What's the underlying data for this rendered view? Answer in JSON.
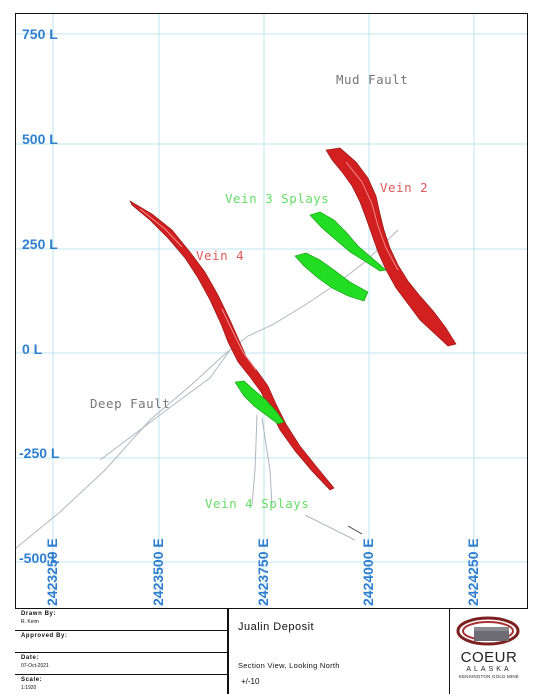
{
  "section": {
    "levels": [
      {
        "label": "750 L",
        "value": 750
      },
      {
        "label": "500 L",
        "value": 500
      },
      {
        "label": "250 L",
        "value": 250
      },
      {
        "label": "0 L",
        "value": 0
      },
      {
        "label": "-250 L",
        "value": -250
      },
      {
        "label": "-500 L",
        "value": -500
      }
    ],
    "eastings": [
      {
        "label": "2423250 E",
        "value": 2423250
      },
      {
        "label": "2423500 E",
        "value": 2423500
      },
      {
        "label": "2423750 E",
        "value": 2423750
      },
      {
        "label": "2424000 E",
        "value": 2424000
      },
      {
        "label": "2424250 E",
        "value": 2424250
      }
    ],
    "features": {
      "mud_fault": "Mud Fault",
      "vein_2": "Vein 2",
      "vein_3_splays": "Vein 3 Splays",
      "vein_4": "Vein 4",
      "deep_fault": "Deep Fault",
      "vein_4_splays": "Vein 4 Splays"
    },
    "colors": {
      "grid": "#bfe6ef",
      "axis_labels": "#2f7fd1",
      "vein_red": "#d21f1f",
      "vein_green": "#22dd22",
      "fault_line": "#aeb8c0",
      "label_gray": "#777777",
      "label_red": "#e05a5a",
      "label_green": "#66dd66"
    }
  },
  "title_block": {
    "drawn_by_label": "Drawn By:",
    "drawn_by_value": "R. Keim",
    "approved_by_label": "Approved By:",
    "approved_by_value": "",
    "date_label": "Date:",
    "date_value": "07-Oct-2021",
    "scale_label": "Scale:",
    "scale_value": "1:1920",
    "project": "Jualin Deposit",
    "view": "Section View, Looking North",
    "tolerance": "+/-10",
    "logo": {
      "name": "COEUR",
      "region": "ALASKA",
      "mine": "KENSINGTON GOLD MINE"
    }
  }
}
